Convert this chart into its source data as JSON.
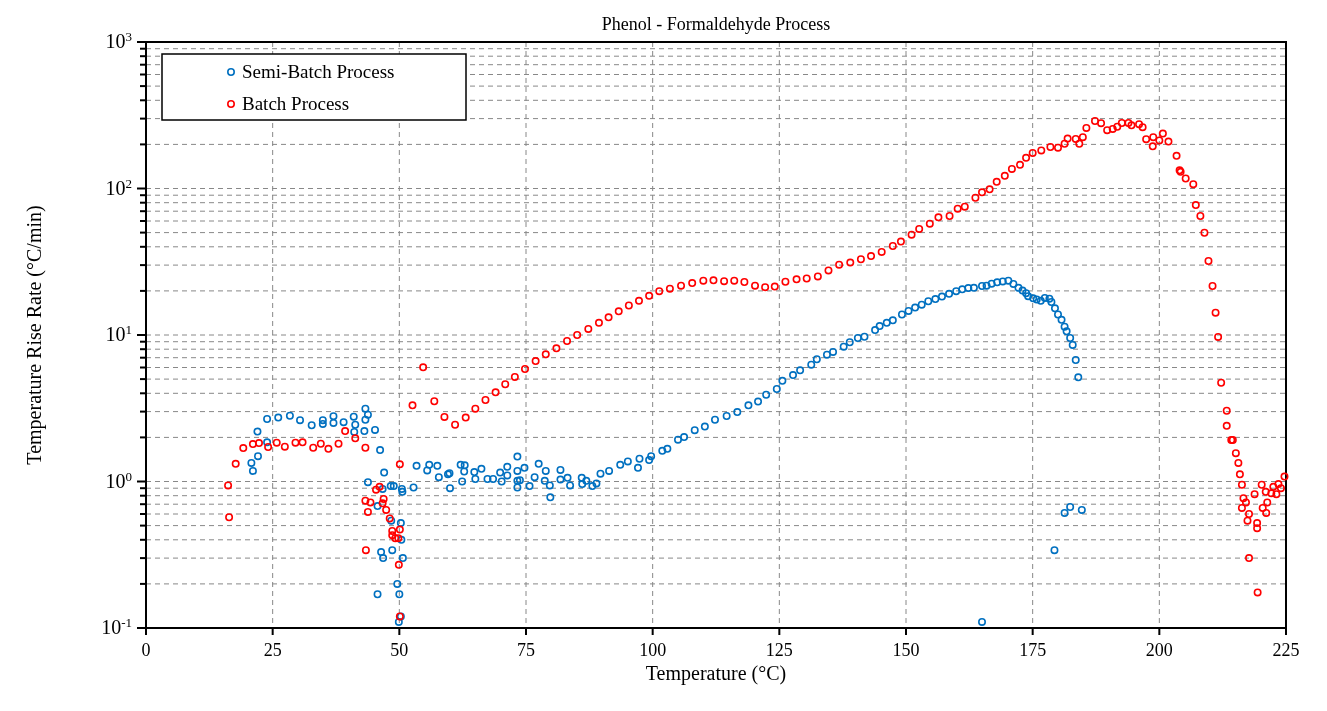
{
  "chart_data": {
    "type": "scatter",
    "title": "Phenol - Formaldehyde Process",
    "xlabel": "Temperature (°C)",
    "ylabel": "Temperature Rise Rate (°C/min)",
    "xlim": [
      0,
      225
    ],
    "xticks": [
      0,
      25,
      50,
      75,
      100,
      125,
      150,
      175,
      200,
      225
    ],
    "ylim": [
      0.1,
      1000
    ],
    "log": "y",
    "yticks": [
      {
        "value": 0.1,
        "label": "10$^{-1}$"
      },
      {
        "value": 0.2,
        "label": null
      },
      {
        "value": 0.3,
        "label": null
      },
      {
        "value": 0.4,
        "label": null
      },
      {
        "value": 0.5,
        "label": null
      },
      {
        "value": 0.6,
        "label": null
      },
      {
        "value": 0.7,
        "label": null
      },
      {
        "value": 0.8,
        "label": null
      },
      {
        "value": 0.9,
        "label": null
      },
      {
        "value": 1,
        "label": "10$^{0}$"
      },
      {
        "value": 2,
        "label": null
      },
      {
        "value": 3,
        "label": null
      },
      {
        "value": 4,
        "label": null
      },
      {
        "value": 5,
        "label": null
      },
      {
        "value": 6,
        "label": null
      },
      {
        "value": 7,
        "label": null
      },
      {
        "value": 8,
        "label": null
      },
      {
        "value": 9,
        "label": null
      },
      {
        "value": 10,
        "label": "10$^{1}$"
      },
      {
        "value": 20,
        "label": null
      },
      {
        "value": 30,
        "label": null
      },
      {
        "value": 40,
        "label": null
      },
      {
        "value": 50,
        "label": null
      },
      {
        "value": 60,
        "label": null
      },
      {
        "value": 70,
        "label": null
      },
      {
        "value": 80,
        "label": null
      },
      {
        "value": 90,
        "label": null
      },
      {
        "value": 100,
        "label": "10$^{2}$"
      },
      {
        "value": 200,
        "label": null
      },
      {
        "value": 300,
        "label": null
      },
      {
        "value": 400,
        "label": null
      },
      {
        "value": 500,
        "label": null
      },
      {
        "value": 600,
        "label": null
      },
      {
        "value": 700,
        "label": null
      },
      {
        "value": 800,
        "label": null
      },
      {
        "value": 900,
        "label": null
      },
      {
        "value": 1000,
        "label": "10$^{3}$"
      }
    ],
    "grid": true,
    "legend": "top left",
    "marker": "circle",
    "series": [
      {
        "name": "Semi-Batch Process",
        "color": "#0070c0",
        "x": [
          20.8,
          21.1,
          22.0,
          22.1,
          23.9,
          23.9,
          26.1,
          28.4,
          30.4,
          32.7,
          34.9,
          34.9,
          37.0,
          37.0,
          39.0,
          41.0,
          41.3,
          41.1,
          43.1,
          43.3,
          43.8,
          43.3,
          45.2,
          46.2,
          47.0,
          43.8,
          45.7,
          46.7,
          48.3,
          48.9,
          48.4,
          46.4,
          46.8,
          48.6,
          45.7,
          49.6,
          50.0,
          50.3,
          50.4,
          50.7,
          50.3,
          49.9,
          50.5,
          50.6,
          52.8,
          53.4,
          55.5,
          55.9,
          57.5,
          57.8,
          59.6,
          59.9,
          60.0,
          62.1,
          62.8,
          62.4,
          62.9,
          64.8,
          65.0,
          66.2,
          67.4,
          68.5,
          69.9,
          70.2,
          71.3,
          71.3,
          73.3,
          73.3,
          73.3,
          73.3,
          73.8,
          74.7,
          75.7,
          76.7,
          77.5,
          78.9,
          78.7,
          79.7,
          79.8,
          81.8,
          81.8,
          83.2,
          83.7,
          86.0,
          86.1,
          86.9,
          88.1,
          88.9,
          89.7,
          91.4,
          93.6,
          95.1,
          97.1,
          97.4,
          99.3,
          99.7,
          101.9,
          102.9,
          105.0,
          106.2,
          108.3,
          110.3,
          112.3,
          114.6,
          116.7,
          118.9,
          120.8,
          122.4,
          124.5,
          125.6,
          127.7,
          129.1,
          131.3,
          132.4,
          134.4,
          135.6,
          137.7,
          138.9,
          140.5,
          141.8,
          143.9,
          144.8,
          146.2,
          147.4,
          149.2,
          150.5,
          151.8,
          153.1,
          154.4,
          155.8,
          157.1,
          158.5,
          159.9,
          161.1,
          162.3,
          163.4,
          165.0,
          165.9,
          166.9,
          168.0,
          169.1,
          170.2,
          171.2,
          172.2,
          173.0,
          173.7,
          174.1,
          175.1,
          175.8,
          176.6,
          177.4,
          178.3,
          178.7,
          179.4,
          180.0,
          180.7,
          181.3,
          181.7,
          182.4,
          182.9,
          183.5,
          184.0,
          181.3,
          182.4,
          184.7,
          179.3,
          165.0
        ],
        "values": [
          1.34,
          1.18,
          2.19,
          1.49,
          2.67,
          1.85,
          2.73,
          2.81,
          2.62,
          2.42,
          2.62,
          2.47,
          2.79,
          2.51,
          2.54,
          2.77,
          2.44,
          2.18,
          2.21,
          3.14,
          2.86,
          2.64,
          2.25,
          1.64,
          1.15,
          0.99,
          0.68,
          0.89,
          0.93,
          0.93,
          0.54,
          0.33,
          0.3,
          0.34,
          0.17,
          0.2,
          0.17,
          0.52,
          0.4,
          0.3,
          0.12,
          0.11,
          0.89,
          0.85,
          0.91,
          1.28,
          1.19,
          1.3,
          1.28,
          1.07,
          1.12,
          1.14,
          0.9,
          1.3,
          1.17,
          1.0,
          1.29,
          1.16,
          1.04,
          1.22,
          1.04,
          1.04,
          1.15,
          1.0,
          1.26,
          1.1,
          1.48,
          1.18,
          1.01,
          0.91,
          1.02,
          1.24,
          0.93,
          1.07,
          1.32,
          1.18,
          1.01,
          0.94,
          0.78,
          1.2,
          1.03,
          1.06,
          0.94,
          1.06,
          0.96,
          1.01,
          0.93,
          0.97,
          1.13,
          1.18,
          1.3,
          1.37,
          1.24,
          1.43,
          1.4,
          1.49,
          1.62,
          1.67,
          1.93,
          2.01,
          2.24,
          2.37,
          2.64,
          2.8,
          2.98,
          3.31,
          3.51,
          3.91,
          4.28,
          4.87,
          5.33,
          5.74,
          6.27,
          6.83,
          7.34,
          7.66,
          8.32,
          8.92,
          9.54,
          9.73,
          10.8,
          11.5,
          12.1,
          12.6,
          13.8,
          14.6,
          15.4,
          16.1,
          17.0,
          17.6,
          18.3,
          19.1,
          19.9,
          20.5,
          20.9,
          21.0,
          21.6,
          21.7,
          22.4,
          22.9,
          23.2,
          23.5,
          22.3,
          21.0,
          20.1,
          19.3,
          18.4,
          17.8,
          17.5,
          17.1,
          17.9,
          17.7,
          16.8,
          15.2,
          13.8,
          12.7,
          11.4,
          10.6,
          9.54,
          8.55,
          6.75,
          5.14,
          0.61,
          0.67,
          0.64,
          0.34,
          0.11
        ]
      },
      {
        "name": "Batch Process",
        "color": "#ff0000",
        "x": [
          16.2,
          16.4,
          17.7,
          19.2,
          21.1,
          22.3,
          24.1,
          25.8,
          27.4,
          29.5,
          30.9,
          33.0,
          34.5,
          36.0,
          38.0,
          39.3,
          41.3,
          43.3,
          43.4,
          43.3,
          43.8,
          44.3,
          45.4,
          46.1,
          46.9,
          46.7,
          47.4,
          48.1,
          48.6,
          48.6,
          49.2,
          49.8,
          50.1,
          49.9,
          50.1,
          50.1,
          52.6,
          54.7,
          56.9,
          58.9,
          61.0,
          63.1,
          65.0,
          67.0,
          69.0,
          70.9,
          72.8,
          74.8,
          76.9,
          78.9,
          81.0,
          83.1,
          85.1,
          87.3,
          89.4,
          91.3,
          93.3,
          95.3,
          97.3,
          99.3,
          101.3,
          103.4,
          105.6,
          107.8,
          110.0,
          112.0,
          114.1,
          116.1,
          118.1,
          120.2,
          122.2,
          124.1,
          126.2,
          128.4,
          130.4,
          132.6,
          134.7,
          136.8,
          139.0,
          141.1,
          143.1,
          145.2,
          147.4,
          149.0,
          151.1,
          152.6,
          154.7,
          156.4,
          158.6,
          160.2,
          161.6,
          163.7,
          165.0,
          166.5,
          167.9,
          169.5,
          170.9,
          172.5,
          173.7,
          175.0,
          176.7,
          178.5,
          180.0,
          181.3,
          181.9,
          184.2,
          183.5,
          184.9,
          185.6,
          187.3,
          188.5,
          189.7,
          190.8,
          191.7,
          192.6,
          193.9,
          194.5,
          196.0,
          196.7,
          197.4,
          198.8,
          198.7,
          200.0,
          200.7,
          201.8,
          203.4,
          204.0,
          204.2,
          205.2,
          206.7,
          207.2,
          208.1,
          208.9,
          209.7,
          210.5,
          211.1,
          211.6,
          212.2,
          213.3,
          213.3,
          214.2,
          214.5,
          215.1,
          215.6,
          215.9,
          216.3,
          216.6,
          216.3,
          217.1,
          217.7,
          217.4,
          217.7,
          219.3,
          219.3,
          219.4,
          220.2,
          218.8,
          220.4,
          221.1,
          221.3,
          221.0,
          222.1,
          222.5,
          223.1,
          223.5,
          224.0,
          224.7
        ],
        "values": [
          0.94,
          0.57,
          1.32,
          1.69,
          1.8,
          1.83,
          1.72,
          1.84,
          1.73,
          1.84,
          1.85,
          1.7,
          1.81,
          1.67,
          1.81,
          2.21,
          1.97,
          1.7,
          0.34,
          0.74,
          0.62,
          0.72,
          0.88,
          0.92,
          0.76,
          0.71,
          0.64,
          0.56,
          0.46,
          0.43,
          0.41,
          0.41,
          0.47,
          0.27,
          1.31,
          0.12,
          3.31,
          6.02,
          3.53,
          2.76,
          2.44,
          2.73,
          3.14,
          3.6,
          4.06,
          4.61,
          5.17,
          5.86,
          6.64,
          7.38,
          8.11,
          9.1,
          10.0,
          11.0,
          12.1,
          13.2,
          14.5,
          15.9,
          17.1,
          18.5,
          19.9,
          20.7,
          21.7,
          22.6,
          23.5,
          23.6,
          23.3,
          23.5,
          23.0,
          21.7,
          21.2,
          21.4,
          23.1,
          24.0,
          24.3,
          25.1,
          27.6,
          30.2,
          31.2,
          32.9,
          34.6,
          36.9,
          40.5,
          43.4,
          48.4,
          53.0,
          57.5,
          63.6,
          64.9,
          72.8,
          75.1,
          86.5,
          94.2,
          98.7,
          111,
          122,
          136,
          145,
          162,
          175,
          182,
          192,
          190,
          202,
          219,
          202,
          218,
          224,
          259,
          289,
          279,
          250,
          255,
          264,
          280,
          280,
          270,
          275,
          262,
          217,
          224,
          194,
          213,
          237,
          209,
          167,
          133,
          130,
          117,
          107,
          77.1,
          64.9,
          49.9,
          32.0,
          21.6,
          14.2,
          9.7,
          4.72,
          3.04,
          2.4,
          1.92,
          1.92,
          1.56,
          1.34,
          1.12,
          0.95,
          0.77,
          0.66,
          0.72,
          0.6,
          0.54,
          0.3,
          0.52,
          0.48,
          0.175,
          0.95,
          0.82,
          0.66,
          0.61,
          0.72,
          0.85,
          0.83,
          0.92,
          0.82,
          0.96,
          0.9,
          1.08
        ]
      }
    ]
  }
}
